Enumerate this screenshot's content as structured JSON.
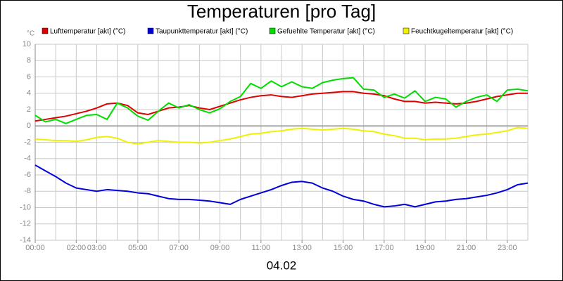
{
  "chart_data": {
    "type": "line",
    "title": "Temperaturen [pro Tag]",
    "y_unit": "°C",
    "xlabel": "04.02",
    "x": [
      0,
      0.5,
      1,
      1.5,
      2,
      2.5,
      3,
      3.5,
      4,
      4.5,
      5,
      5.5,
      6,
      6.5,
      7,
      7.5,
      8,
      8.5,
      9,
      9.5,
      10,
      10.5,
      11,
      11.5,
      12,
      12.5,
      13,
      13.5,
      14,
      14.5,
      15,
      15.5,
      16,
      16.5,
      17,
      17.5,
      18,
      18.5,
      19,
      19.5,
      20,
      20.5,
      21,
      21.5,
      22,
      22.5,
      23,
      23.5,
      24
    ],
    "xlim": [
      0,
      24
    ],
    "xticks": [
      {
        "value": 0,
        "label": "00:00"
      },
      {
        "value": 2,
        "label": "02:00"
      },
      {
        "value": 3,
        "label": "03:00"
      },
      {
        "value": 5,
        "label": "05:00"
      },
      {
        "value": 7,
        "label": "07:00"
      },
      {
        "value": 9,
        "label": "09:00"
      },
      {
        "value": 11,
        "label": "11:00"
      },
      {
        "value": 13,
        "label": "13:00"
      },
      {
        "value": 15,
        "label": "15:00"
      },
      {
        "value": 17,
        "label": "17:00"
      },
      {
        "value": 19,
        "label": "19:00"
      },
      {
        "value": 21,
        "label": "21:00"
      },
      {
        "value": 23,
        "label": "23:00"
      }
    ],
    "xgrid": [
      0,
      1,
      2,
      3,
      4,
      5,
      6,
      7,
      8,
      9,
      10,
      11,
      12,
      13,
      14,
      15,
      16,
      17,
      18,
      19,
      20,
      21,
      22,
      23,
      24
    ],
    "ylim": [
      -14,
      10
    ],
    "yticks": [
      -14,
      -12,
      -10,
      -8,
      -6,
      -4,
      -2,
      0,
      2,
      4,
      6,
      8,
      10
    ],
    "grid": true,
    "legend": "top",
    "series": [
      {
        "name": "Lufttemperatur [akt] (°C)",
        "color": "#e00000",
        "values": [
          0.6,
          0.8,
          1.0,
          1.2,
          1.5,
          1.8,
          2.2,
          2.7,
          2.8,
          2.5,
          1.6,
          1.4,
          1.8,
          2.2,
          2.3,
          2.5,
          2.2,
          2.0,
          2.4,
          2.8,
          3.2,
          3.5,
          3.7,
          3.8,
          3.6,
          3.5,
          3.7,
          3.9,
          4.0,
          4.1,
          4.2,
          4.2,
          4.0,
          3.9,
          3.7,
          3.3,
          3.0,
          3.0,
          2.8,
          2.9,
          2.8,
          2.7,
          2.8,
          3.0,
          3.3,
          3.6,
          3.8,
          4.0,
          4.0
        ]
      },
      {
        "name": "Taupunkttemperatur [akt] (°C)",
        "color": "#0000dd",
        "values": [
          -4.8,
          -5.5,
          -6.2,
          -7.0,
          -7.6,
          -7.8,
          -8.0,
          -7.8,
          -7.9,
          -8.0,
          -8.2,
          -8.3,
          -8.6,
          -8.9,
          -9.0,
          -9.0,
          -9.1,
          -9.2,
          -9.4,
          -9.6,
          -9.0,
          -8.6,
          -8.2,
          -7.8,
          -7.3,
          -6.9,
          -6.8,
          -7.0,
          -7.6,
          -8.0,
          -8.6,
          -9.0,
          -9.2,
          -9.6,
          -9.9,
          -9.8,
          -9.6,
          -9.9,
          -9.6,
          -9.3,
          -9.2,
          -9.0,
          -8.9,
          -8.7,
          -8.5,
          -8.2,
          -7.8,
          -7.2,
          -7.0
        ]
      },
      {
        "name": "Gefuehlte Temperatur [akt] (°C)",
        "color": "#00dd00",
        "values": [
          1.3,
          0.5,
          0.8,
          0.3,
          0.8,
          1.3,
          1.4,
          0.8,
          2.8,
          2.2,
          1.2,
          0.7,
          1.8,
          2.8,
          2.2,
          2.6,
          2.0,
          1.6,
          2.1,
          3.0,
          3.6,
          5.2,
          4.6,
          5.5,
          4.8,
          5.4,
          4.8,
          4.6,
          5.3,
          5.6,
          5.8,
          5.9,
          4.5,
          4.4,
          3.5,
          3.9,
          3.4,
          4.3,
          3.0,
          3.5,
          3.3,
          2.3,
          3.0,
          3.5,
          3.8,
          3.0,
          4.4,
          4.5,
          4.3
        ]
      },
      {
        "name": "Feuchtkugeltemperatur [akt] (°C)",
        "color": "#f0f000",
        "values": [
          -1.6,
          -1.7,
          -1.8,
          -1.8,
          -1.9,
          -1.7,
          -1.4,
          -1.3,
          -1.5,
          -2.0,
          -2.2,
          -2.0,
          -1.8,
          -1.9,
          -2.0,
          -2.0,
          -2.1,
          -2.0,
          -1.8,
          -1.6,
          -1.3,
          -1.0,
          -0.9,
          -0.7,
          -0.6,
          -0.4,
          -0.3,
          -0.4,
          -0.5,
          -0.4,
          -0.3,
          -0.4,
          -0.6,
          -0.7,
          -1.0,
          -1.2,
          -1.5,
          -1.5,
          -1.7,
          -1.6,
          -1.6,
          -1.5,
          -1.3,
          -1.1,
          -1.0,
          -0.8,
          -0.6,
          -0.2,
          -0.3
        ]
      }
    ]
  }
}
